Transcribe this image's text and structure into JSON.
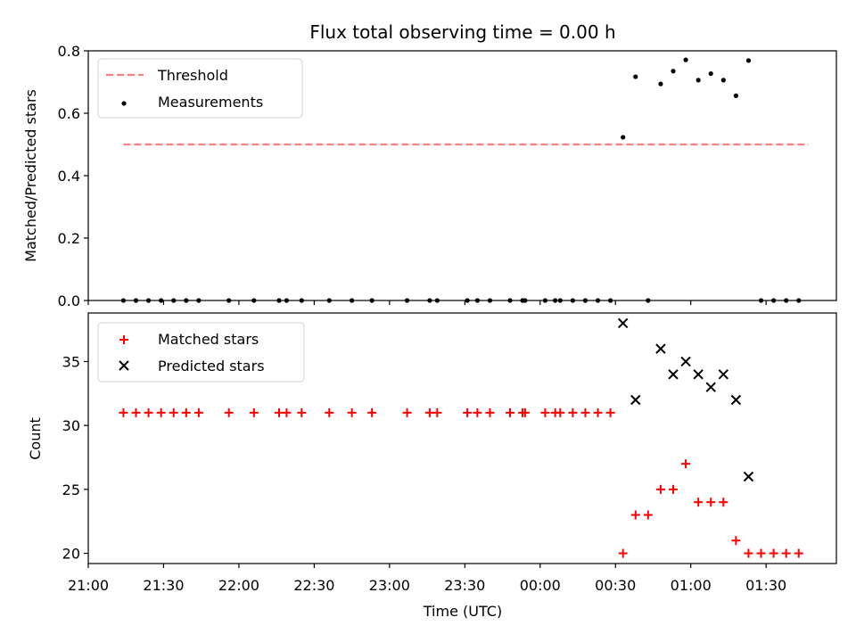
{
  "figure": {
    "title": "Flux total observing time = 0.00 h",
    "xlabel": "Time (UTC)"
  },
  "chart_data": [
    {
      "type": "scatter",
      "panel": "top",
      "ylabel": "Matched/Predicted stars",
      "ylim": [
        0.0,
        0.8
      ],
      "yticks": [
        0.0,
        0.2,
        0.4,
        0.6,
        0.8
      ],
      "ytick_labels": [
        "0.0",
        "0.2",
        "0.4",
        "0.6",
        "0.8"
      ],
      "legend": {
        "placement": "upper-left",
        "entries": [
          "Threshold",
          "Measurements"
        ]
      },
      "threshold": {
        "name": "Threshold",
        "value": 0.5,
        "x_start": "21:14",
        "x_end": "01:47",
        "color": "#ff7f7f",
        "style": "dashed"
      },
      "series": [
        {
          "name": "Measurements",
          "color": "#000000",
          "marker": "dot",
          "points": [
            [
              "21:14",
              0
            ],
            [
              "21:19",
              0
            ],
            [
              "21:24",
              0
            ],
            [
              "21:29",
              0
            ],
            [
              "21:34",
              0
            ],
            [
              "21:39",
              0
            ],
            [
              "21:44",
              0
            ],
            [
              "21:56",
              0
            ],
            [
              "22:06",
              0
            ],
            [
              "22:16",
              0
            ],
            [
              "22:19",
              0
            ],
            [
              "22:25",
              0
            ],
            [
              "22:36",
              0
            ],
            [
              "22:45",
              0
            ],
            [
              "22:53",
              0
            ],
            [
              "23:07",
              0
            ],
            [
              "23:16",
              0
            ],
            [
              "23:19",
              0
            ],
            [
              "23:31",
              0
            ],
            [
              "23:35",
              0
            ],
            [
              "23:40",
              0
            ],
            [
              "23:48",
              0
            ],
            [
              "23:53",
              0
            ],
            [
              "23:54",
              0
            ],
            [
              "00:02",
              0
            ],
            [
              "00:06",
              0
            ],
            [
              "00:08",
              0
            ],
            [
              "00:13",
              0
            ],
            [
              "00:18",
              0
            ],
            [
              "00:23",
              0
            ],
            [
              "00:28",
              0
            ],
            [
              "00:33",
              0.523
            ],
            [
              "00:38",
              0.717
            ],
            [
              "00:43",
              0.0
            ],
            [
              "00:48",
              0.694
            ],
            [
              "00:53",
              0.735
            ],
            [
              "00:58",
              0.771
            ],
            [
              "01:03",
              0.706
            ],
            [
              "01:08",
              0.727
            ],
            [
              "01:13",
              0.706
            ],
            [
              "01:18",
              0.656
            ],
            [
              "01:23",
              0.769
            ],
            [
              "01:28",
              0
            ],
            [
              "01:33",
              0
            ],
            [
              "01:38",
              0
            ],
            [
              "01:43",
              0
            ]
          ]
        }
      ]
    },
    {
      "type": "scatter",
      "panel": "bottom",
      "ylabel": "Count",
      "ylim": [
        19.2,
        38.8
      ],
      "yticks": [
        20,
        25,
        30,
        35
      ],
      "ytick_labels": [
        "20",
        "25",
        "30",
        "35"
      ],
      "legend": {
        "placement": "upper-left",
        "entries": [
          "Matched stars",
          "Predicted stars"
        ]
      },
      "series": [
        {
          "name": "Matched stars",
          "color": "#ff0000",
          "marker": "plus",
          "points": [
            [
              "21:14",
              31
            ],
            [
              "21:19",
              31
            ],
            [
              "21:24",
              31
            ],
            [
              "21:29",
              31
            ],
            [
              "21:34",
              31
            ],
            [
              "21:39",
              31
            ],
            [
              "21:44",
              31
            ],
            [
              "21:56",
              31
            ],
            [
              "22:06",
              31
            ],
            [
              "22:16",
              31
            ],
            [
              "22:19",
              31
            ],
            [
              "22:25",
              31
            ],
            [
              "22:36",
              31
            ],
            [
              "22:45",
              31
            ],
            [
              "22:53",
              31
            ],
            [
              "23:07",
              31
            ],
            [
              "23:16",
              31
            ],
            [
              "23:19",
              31
            ],
            [
              "23:31",
              31
            ],
            [
              "23:35",
              31
            ],
            [
              "23:40",
              31
            ],
            [
              "23:48",
              31
            ],
            [
              "23:53",
              31
            ],
            [
              "23:54",
              31
            ],
            [
              "00:02",
              31
            ],
            [
              "00:06",
              31
            ],
            [
              "00:08",
              31
            ],
            [
              "00:13",
              31
            ],
            [
              "00:18",
              31
            ],
            [
              "00:23",
              31
            ],
            [
              "00:28",
              31
            ],
            [
              "00:33",
              20
            ],
            [
              "00:38",
              23
            ],
            [
              "00:43",
              23
            ],
            [
              "00:48",
              25
            ],
            [
              "00:53",
              25
            ],
            [
              "00:58",
              27
            ],
            [
              "01:03",
              24
            ],
            [
              "01:08",
              24
            ],
            [
              "01:13",
              24
            ],
            [
              "01:18",
              21
            ],
            [
              "01:23",
              20
            ],
            [
              "01:28",
              20
            ],
            [
              "01:33",
              20
            ],
            [
              "01:38",
              20
            ],
            [
              "01:43",
              20
            ]
          ]
        },
        {
          "name": "Predicted stars",
          "color": "#000000",
          "marker": "x",
          "points": [
            [
              "00:33",
              38
            ],
            [
              "00:38",
              32
            ],
            [
              "00:48",
              36
            ],
            [
              "00:53",
              34
            ],
            [
              "00:58",
              35
            ],
            [
              "01:03",
              34
            ],
            [
              "01:08",
              33
            ],
            [
              "01:13",
              34
            ],
            [
              "01:18",
              32
            ],
            [
              "01:23",
              26
            ]
          ]
        }
      ]
    }
  ],
  "xaxis": {
    "xlim": [
      "21:00",
      "01:58"
    ],
    "ticks": [
      "21:00",
      "21:30",
      "22:00",
      "22:30",
      "23:00",
      "23:30",
      "00:00",
      "00:30",
      "01:00",
      "01:30"
    ]
  }
}
